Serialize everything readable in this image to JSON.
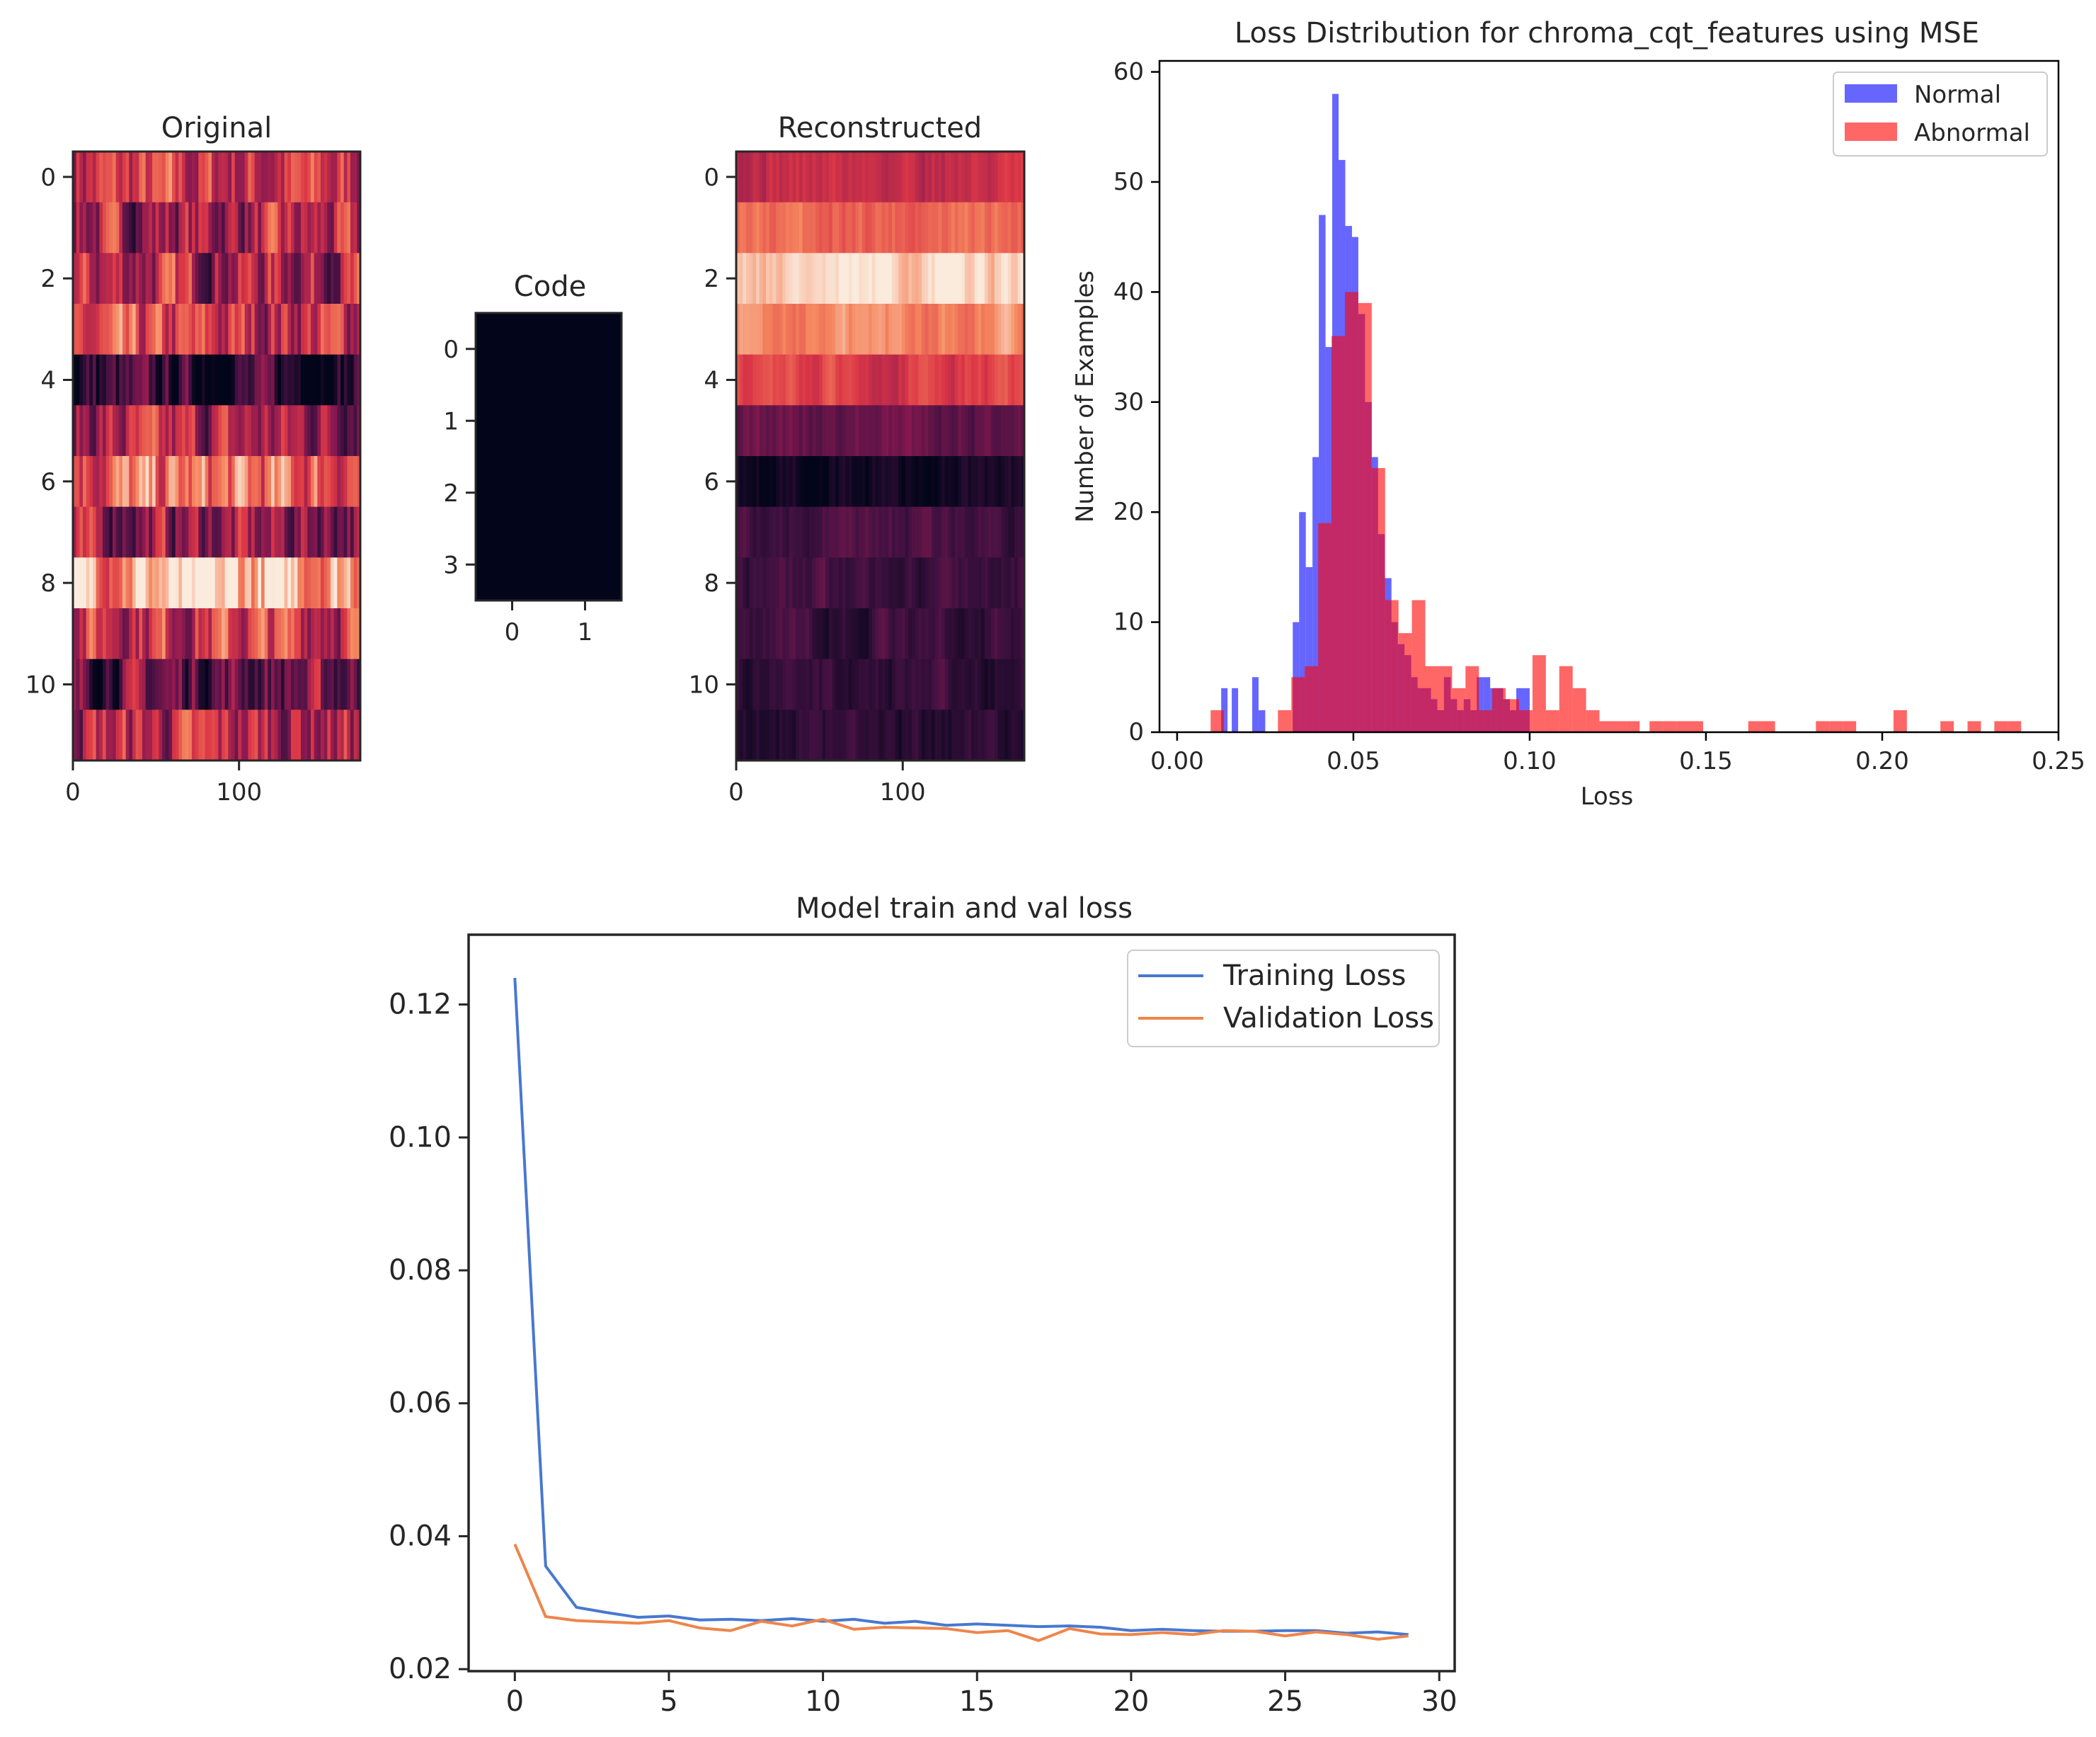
{
  "colors": {
    "normal": "#0000ff",
    "abnormal": "#ff0000",
    "training": "#4878d0",
    "validation": "#ee854a",
    "code_fill": "#03051a",
    "axis": "#262626"
  },
  "chart_data": [
    {
      "id": "original",
      "type": "heatmap",
      "title": "Original",
      "colormap": "rocket",
      "xlim": [
        0,
        173
      ],
      "ylim": [
        11.5,
        -0.5
      ],
      "xticks": [
        0,
        100
      ],
      "yticks": [
        0,
        2,
        4,
        6,
        8,
        10
      ],
      "bright_bands": [
        {
          "row": 8,
          "intensity": 0.95
        },
        {
          "row": 6,
          "intensity": 0.75
        },
        {
          "row": 3,
          "intensity": 0.6
        },
        {
          "row": 9,
          "intensity": 0.65
        }
      ],
      "dark_bands": [
        {
          "row": 4,
          "intensity": 0.1
        },
        {
          "row": 10,
          "intensity": 0.2
        }
      ]
    },
    {
      "id": "code",
      "type": "heatmap",
      "title": "Code",
      "colormap": "rocket",
      "xlim": [
        -0.5,
        1.5
      ],
      "ylim": [
        3.5,
        -0.5
      ],
      "xticks": [
        0,
        1
      ],
      "yticks": [
        0,
        1,
        2,
        3
      ],
      "values": [
        [
          0,
          0
        ],
        [
          0,
          0
        ],
        [
          0,
          0
        ],
        [
          0,
          0
        ]
      ]
    },
    {
      "id": "reconstructed",
      "type": "heatmap",
      "title": "Reconstructed",
      "colormap": "rocket",
      "xlim": [
        0,
        173
      ],
      "ylim": [
        11.5,
        -0.5
      ],
      "xticks": [
        0,
        100
      ],
      "yticks": [
        0,
        2,
        4,
        6,
        8,
        10
      ],
      "row_profile": [
        0.55,
        0.72,
        0.95,
        0.8,
        0.62,
        0.3,
        0.05,
        0.2,
        0.18,
        0.17,
        0.15,
        0.12
      ]
    },
    {
      "id": "loss-distribution",
      "type": "bar",
      "subtype": "histogram",
      "title": "Loss Distribution for chroma_cqt_features using MSE",
      "xlabel": "Loss",
      "ylabel": "Number of Examples",
      "xlim": [
        -0.005,
        0.25
      ],
      "ylim": [
        0,
        61
      ],
      "xticks": [
        "0.00",
        "0.05",
        "0.10",
        "0.15",
        "0.20",
        "0.25"
      ],
      "xtick_values": [
        0.0,
        0.05,
        0.1,
        0.15,
        0.2,
        0.25
      ],
      "yticks": [
        0,
        10,
        20,
        30,
        40,
        50,
        60
      ],
      "legend": {
        "location": "top-right",
        "entries": [
          "Normal",
          "Abnormal"
        ]
      },
      "series": [
        {
          "name": "Normal",
          "alpha": 0.6,
          "bins": [
            {
              "x0": 0.0125,
              "x1": 0.0143,
              "count": 4
            },
            {
              "x0": 0.0155,
              "x1": 0.0173,
              "count": 4
            },
            {
              "x0": 0.0213,
              "x1": 0.0231,
              "count": 5
            },
            {
              "x0": 0.0231,
              "x1": 0.025,
              "count": 2
            },
            {
              "x0": 0.0328,
              "x1": 0.0346,
              "count": 10
            },
            {
              "x0": 0.0346,
              "x1": 0.0365,
              "count": 20
            },
            {
              "x0": 0.0365,
              "x1": 0.0384,
              "count": 15
            },
            {
              "x0": 0.0384,
              "x1": 0.0402,
              "count": 25
            },
            {
              "x0": 0.0402,
              "x1": 0.0421,
              "count": 47
            },
            {
              "x0": 0.0421,
              "x1": 0.044,
              "count": 35
            },
            {
              "x0": 0.044,
              "x1": 0.0458,
              "count": 58
            },
            {
              "x0": 0.0458,
              "x1": 0.0477,
              "count": 52
            },
            {
              "x0": 0.0477,
              "x1": 0.0496,
              "count": 46
            },
            {
              "x0": 0.0496,
              "x1": 0.0514,
              "count": 45
            },
            {
              "x0": 0.0514,
              "x1": 0.0533,
              "count": 38
            },
            {
              "x0": 0.0533,
              "x1": 0.0552,
              "count": 30
            },
            {
              "x0": 0.0552,
              "x1": 0.057,
              "count": 25
            },
            {
              "x0": 0.057,
              "x1": 0.0589,
              "count": 18
            },
            {
              "x0": 0.0589,
              "x1": 0.0608,
              "count": 14
            },
            {
              "x0": 0.0608,
              "x1": 0.0626,
              "count": 10
            },
            {
              "x0": 0.0626,
              "x1": 0.0645,
              "count": 8
            },
            {
              "x0": 0.0645,
              "x1": 0.0664,
              "count": 7
            },
            {
              "x0": 0.0664,
              "x1": 0.0682,
              "count": 5
            },
            {
              "x0": 0.0682,
              "x1": 0.0701,
              "count": 4
            },
            {
              "x0": 0.0701,
              "x1": 0.072,
              "count": 4
            },
            {
              "x0": 0.072,
              "x1": 0.0738,
              "count": 3
            },
            {
              "x0": 0.0738,
              "x1": 0.0757,
              "count": 2
            },
            {
              "x0": 0.0757,
              "x1": 0.0776,
              "count": 5
            },
            {
              "x0": 0.0776,
              "x1": 0.0794,
              "count": 3
            },
            {
              "x0": 0.0794,
              "x1": 0.0813,
              "count": 2
            },
            {
              "x0": 0.0813,
              "x1": 0.0832,
              "count": 3
            },
            {
              "x0": 0.0832,
              "x1": 0.085,
              "count": 2
            },
            {
              "x0": 0.085,
              "x1": 0.0869,
              "count": 5
            },
            {
              "x0": 0.0869,
              "x1": 0.0888,
              "count": 5
            },
            {
              "x0": 0.0888,
              "x1": 0.0906,
              "count": 4
            },
            {
              "x0": 0.0906,
              "x1": 0.0925,
              "count": 4
            },
            {
              "x0": 0.0925,
              "x1": 0.0944,
              "count": 3
            },
            {
              "x0": 0.0944,
              "x1": 0.0962,
              "count": 2
            },
            {
              "x0": 0.0962,
              "x1": 0.0981,
              "count": 4
            },
            {
              "x0": 0.0981,
              "x1": 0.1,
              "count": 4
            }
          ]
        },
        {
          "name": "Abnormal",
          "alpha": 0.6,
          "bins": [
            {
              "x0": 0.0095,
              "x1": 0.0133,
              "count": 2
            },
            {
              "x0": 0.0286,
              "x1": 0.0324,
              "count": 2
            },
            {
              "x0": 0.0324,
              "x1": 0.0362,
              "count": 5
            },
            {
              "x0": 0.0362,
              "x1": 0.04,
              "count": 6
            },
            {
              "x0": 0.04,
              "x1": 0.0438,
              "count": 19
            },
            {
              "x0": 0.0438,
              "x1": 0.0476,
              "count": 36
            },
            {
              "x0": 0.0476,
              "x1": 0.0514,
              "count": 40
            },
            {
              "x0": 0.0514,
              "x1": 0.0552,
              "count": 39
            },
            {
              "x0": 0.0552,
              "x1": 0.059,
              "count": 24
            },
            {
              "x0": 0.059,
              "x1": 0.0628,
              "count": 12
            },
            {
              "x0": 0.0628,
              "x1": 0.0666,
              "count": 9
            },
            {
              "x0": 0.0666,
              "x1": 0.0704,
              "count": 12
            },
            {
              "x0": 0.0704,
              "x1": 0.0742,
              "count": 6
            },
            {
              "x0": 0.0742,
              "x1": 0.078,
              "count": 6
            },
            {
              "x0": 0.078,
              "x1": 0.0818,
              "count": 4
            },
            {
              "x0": 0.0818,
              "x1": 0.0856,
              "count": 6
            },
            {
              "x0": 0.0856,
              "x1": 0.0894,
              "count": 2
            },
            {
              "x0": 0.0894,
              "x1": 0.0932,
              "count": 4
            },
            {
              "x0": 0.0932,
              "x1": 0.097,
              "count": 3
            },
            {
              "x0": 0.097,
              "x1": 0.1008,
              "count": 2
            },
            {
              "x0": 0.1008,
              "x1": 0.1046,
              "count": 7
            },
            {
              "x0": 0.1046,
              "x1": 0.1084,
              "count": 2
            },
            {
              "x0": 0.1084,
              "x1": 0.1122,
              "count": 6
            },
            {
              "x0": 0.1122,
              "x1": 0.116,
              "count": 4
            },
            {
              "x0": 0.116,
              "x1": 0.1198,
              "count": 2
            },
            {
              "x0": 0.1198,
              "x1": 0.1236,
              "count": 1
            },
            {
              "x0": 0.1236,
              "x1": 0.1274,
              "count": 1
            },
            {
              "x0": 0.1274,
              "x1": 0.1312,
              "count": 1
            },
            {
              "x0": 0.134,
              "x1": 0.1378,
              "count": 1
            },
            {
              "x0": 0.1378,
              "x1": 0.1416,
              "count": 1
            },
            {
              "x0": 0.1416,
              "x1": 0.1454,
              "count": 1
            },
            {
              "x0": 0.1454,
              "x1": 0.1492,
              "count": 1
            },
            {
              "x0": 0.162,
              "x1": 0.1658,
              "count": 1
            },
            {
              "x0": 0.1658,
              "x1": 0.1696,
              "count": 1
            },
            {
              "x0": 0.1812,
              "x1": 0.185,
              "count": 1
            },
            {
              "x0": 0.185,
              "x1": 0.1888,
              "count": 1
            },
            {
              "x0": 0.1888,
              "x1": 0.1926,
              "count": 1
            },
            {
              "x0": 0.2032,
              "x1": 0.207,
              "count": 2
            },
            {
              "x0": 0.2165,
              "x1": 0.2203,
              "count": 1
            },
            {
              "x0": 0.2242,
              "x1": 0.228,
              "count": 1
            },
            {
              "x0": 0.2318,
              "x1": 0.2356,
              "count": 1
            },
            {
              "x0": 0.2356,
              "x1": 0.2394,
              "count": 1
            }
          ]
        }
      ]
    },
    {
      "id": "train-val-loss",
      "type": "line",
      "title": "Model train and val loss",
      "xlabel": "",
      "ylabel": "",
      "xlim": [
        -1.5,
        30.5
      ],
      "ylim": [
        0.0197,
        0.1305
      ],
      "xticks": [
        0,
        5,
        10,
        15,
        20,
        25,
        30
      ],
      "yticks": [
        "0.02",
        "0.04",
        "0.06",
        "0.08",
        "0.10",
        "0.12"
      ],
      "ytick_values": [
        0.02,
        0.04,
        0.06,
        0.08,
        0.1,
        0.12
      ],
      "legend": {
        "location": "top-right",
        "entries": [
          "Training Loss",
          "Validation Loss"
        ]
      },
      "x": [
        0,
        1,
        2,
        3,
        4,
        5,
        6,
        7,
        8,
        9,
        10,
        11,
        12,
        13,
        14,
        15,
        16,
        17,
        18,
        19,
        20,
        21,
        22,
        23,
        24,
        25,
        26,
        27,
        28,
        29
      ],
      "series": [
        {
          "name": "Training Loss",
          "values": [
            0.124,
            0.0355,
            0.0293,
            0.0285,
            0.0278,
            0.028,
            0.0274,
            0.0275,
            0.0273,
            0.0276,
            0.0272,
            0.0275,
            0.0269,
            0.0272,
            0.0266,
            0.0268,
            0.0266,
            0.0264,
            0.0265,
            0.0263,
            0.0258,
            0.026,
            0.0258,
            0.0257,
            0.0257,
            0.0258,
            0.0258,
            0.0254,
            0.0256,
            0.0252
          ]
        },
        {
          "name": "Validation Loss",
          "values": [
            0.0388,
            0.0279,
            0.0273,
            0.0271,
            0.0269,
            0.0273,
            0.0262,
            0.0258,
            0.0272,
            0.0265,
            0.0275,
            0.026,
            0.0263,
            0.0262,
            0.0261,
            0.0255,
            0.0258,
            0.0243,
            0.0261,
            0.0253,
            0.0252,
            0.0255,
            0.0252,
            0.0258,
            0.0257,
            0.025,
            0.0256,
            0.0252,
            0.0245,
            0.025
          ]
        }
      ]
    }
  ]
}
